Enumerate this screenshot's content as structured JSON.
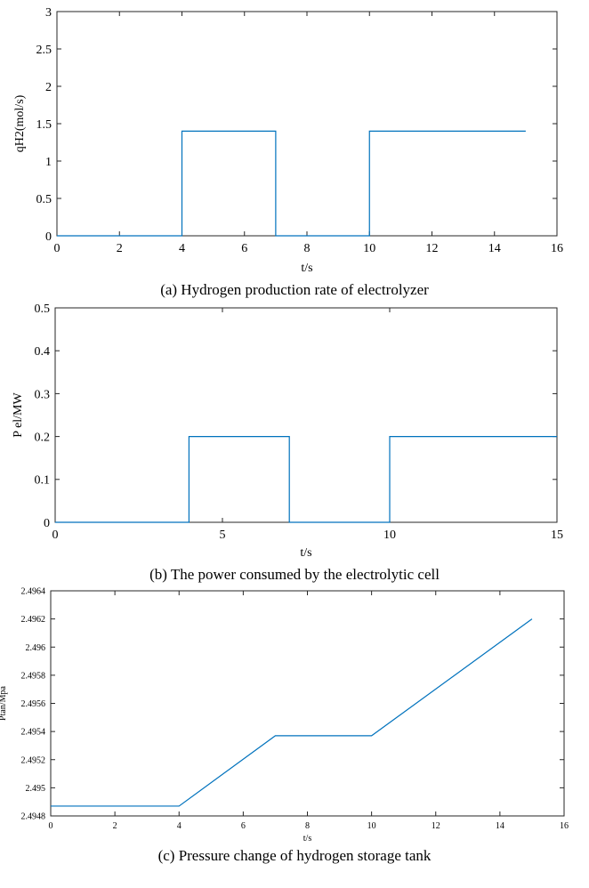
{
  "figure": {
    "chart_data": [
      {
        "type": "line",
        "caption": "(a) Hydrogen production rate of electrolyzer",
        "xlabel": "t/s",
        "ylabel": "qH2(mol/s)",
        "xlim": [
          0,
          16
        ],
        "ylim": [
          0,
          3
        ],
        "xticks": [
          0,
          2,
          4,
          6,
          8,
          10,
          12,
          14,
          16
        ],
        "yticks": [
          0,
          0.5,
          1,
          1.5,
          2,
          2.5,
          3
        ],
        "color": "#0072BD",
        "series": [
          {
            "x": [
              0,
              4,
              4,
              7,
              7,
              10,
              10,
              15
            ],
            "y": [
              0,
              0,
              1.4,
              1.4,
              0,
              0,
              1.4,
              1.4
            ]
          }
        ]
      },
      {
        "type": "line",
        "caption": "(b) The power consumed by the electrolytic cell",
        "xlabel": "t/s",
        "ylabel": "P el/MW",
        "xlim": [
          0,
          15
        ],
        "ylim": [
          0,
          0.5
        ],
        "xticks": [
          0,
          5,
          10,
          15
        ],
        "yticks": [
          0,
          0.1,
          0.2,
          0.3,
          0.4,
          0.5
        ],
        "color": "#0072BD",
        "series": [
          {
            "x": [
              0,
              4,
              4,
              7,
              7,
              10,
              10,
              15
            ],
            "y": [
              0,
              0,
              0.2,
              0.2,
              0,
              0,
              0.2,
              0.2
            ]
          }
        ]
      },
      {
        "type": "line",
        "caption": "(c) Pressure change of hydrogen storage tank",
        "xlabel": "t/s",
        "ylabel": "Ptan/Mpa",
        "xlim": [
          0,
          16
        ],
        "ylim": [
          2.4948,
          2.4964
        ],
        "xticks": [
          0,
          2,
          4,
          6,
          8,
          10,
          12,
          14,
          16
        ],
        "yticks": [
          2.4948,
          2.495,
          2.4952,
          2.4954,
          2.4956,
          2.4958,
          2.496,
          2.4962,
          2.4964
        ],
        "color": "#0072BD",
        "series": [
          {
            "x": [
              0,
              4,
              7,
              10,
              15
            ],
            "y": [
              2.49487,
              2.49487,
              2.49537,
              2.49537,
              2.4962
            ]
          }
        ]
      }
    ]
  }
}
